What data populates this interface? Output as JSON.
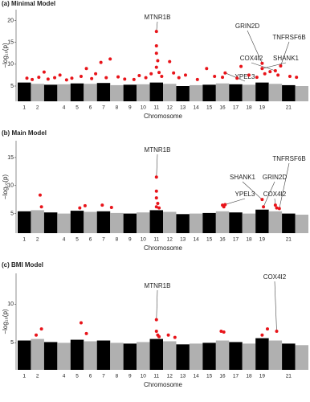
{
  "chart_data": [
    {
      "type": "manhattan",
      "title": "(a) Minimal Model",
      "x_label": "Chromosome",
      "y_label": "−log₁₀(p)",
      "xlim": [
        0.5,
        22.5
      ],
      "ylim": [
        1.5,
        22.5
      ],
      "yticks": [
        5,
        10,
        15,
        20
      ],
      "categories": [
        "1",
        "2",
        null,
        "4",
        "5",
        "6",
        "7",
        "8",
        "9",
        "10",
        "11",
        "12",
        "13",
        "14",
        "15",
        "16",
        "17",
        "18",
        "19",
        null,
        "21",
        null
      ],
      "values": [
        5.8,
        5.5,
        5.3,
        5.4,
        5.6,
        5.5,
        5.7,
        5.2,
        5.3,
        5.4,
        5.8,
        5.5,
        5.0,
        5.2,
        5.3,
        5.6,
        5.4,
        5.3,
        5.8,
        5.5,
        5.2,
        5.0
      ],
      "colors": [
        "#000000",
        "#b0b0b0"
      ],
      "hits": {
        "color": "#e8141a",
        "x": [
          1.2,
          1.6,
          2.1,
          2.5,
          2.8,
          3.3,
          3.7,
          4.2,
          4.6,
          5.3,
          5.7,
          6.1,
          6.4,
          6.8,
          7.2,
          7.5,
          8.1,
          8.6,
          9.3,
          9.7,
          10.2,
          10.6,
          11.0,
          11.0,
          11.0,
          11.1,
          11.0,
          11.2,
          11.4,
          12.0,
          12.3,
          12.7,
          13.2,
          14.1,
          14.8,
          15.4,
          16.0,
          16.2,
          17.1,
          17.4,
          18.0,
          18.6,
          19.0,
          19.0,
          19.2,
          19.6,
          20.0,
          20.2,
          20.4,
          21.1,
          21.6
        ],
        "y": [
          6.8,
          6.5,
          7.0,
          8.2,
          6.6,
          6.9,
          7.5,
          6.4,
          6.8,
          7.2,
          9.0,
          6.7,
          7.8,
          10.4,
          6.9,
          11.2,
          7.1,
          6.6,
          6.5,
          7.4,
          6.9,
          7.8,
          17.5,
          14.2,
          12.5,
          10.8,
          9.3,
          8.1,
          7.2,
          10.6,
          8.0,
          6.9,
          7.5,
          6.5,
          9.0,
          7.2,
          7.0,
          8.0,
          6.8,
          9.5,
          7.5,
          7.0,
          10.2,
          9.0,
          7.8,
          8.3,
          8.5,
          7.5,
          9.6,
          7.2,
          7.0
        ]
      },
      "annotations": [
        {
          "label": "MTNR1B",
          "x": 11.0,
          "y": 17.5
        },
        {
          "label": "GRIN2D",
          "x": 19.0,
          "y": 10.2
        },
        {
          "label": "TNFRSF6B",
          "x": 20.4,
          "y": 9.6
        },
        {
          "label": "COX4I2",
          "x": 20.0,
          "y": 8.5
        },
        {
          "label": "SHANK1",
          "x": 19.0,
          "y": 9.0
        },
        {
          "label": "YPEL3",
          "x": 16.2,
          "y": 8.0
        }
      ]
    },
    {
      "type": "manhattan",
      "title": "(b) Main Model",
      "x_label": "Chromosome",
      "y_label": "−log₁₀(p)",
      "xlim": [
        0.5,
        22.5
      ],
      "ylim": [
        1.5,
        18
      ],
      "yticks": [
        5,
        10,
        15
      ],
      "categories": [
        "1",
        "2",
        null,
        "4",
        "5",
        "6",
        "7",
        "8",
        "9",
        "10",
        "11",
        "12",
        "13",
        "14",
        "15",
        "16",
        "17",
        "18",
        "19",
        null,
        "21",
        null
      ],
      "values": [
        5.4,
        5.6,
        5.2,
        5.0,
        5.5,
        5.3,
        5.4,
        5.1,
        5.0,
        5.2,
        5.6,
        5.3,
        4.9,
        5.0,
        5.1,
        5.4,
        5.2,
        5.0,
        5.7,
        5.4,
        5.0,
        4.8
      ],
      "colors": [
        "#000000",
        "#b0b0b0"
      ],
      "hits": {
        "color": "#e8141a",
        "x": [
          2.2,
          2.3,
          5.2,
          5.6,
          6.9,
          7.6,
          11.0,
          11.0,
          11.0,
          11.1,
          11.0,
          11.2,
          16.0,
          16.1,
          16.2,
          19.0,
          19.1,
          20.0,
          20.1,
          20.3
        ],
        "y": [
          8.3,
          6.2,
          6.0,
          6.4,
          6.5,
          6.1,
          11.5,
          9.0,
          7.8,
          6.8,
          6.2,
          6.0,
          6.5,
          6.2,
          6.6,
          7.5,
          6.2,
          6.5,
          6.0,
          5.9
        ]
      },
      "annotations": [
        {
          "label": "MTNR1B",
          "x": 11.0,
          "y": 11.5
        },
        {
          "label": "TNFRSF6B",
          "x": 20.3,
          "y": 5.9
        },
        {
          "label": "SHANK1",
          "x": 19.0,
          "y": 7.5
        },
        {
          "label": "GRIN2D",
          "x": 19.1,
          "y": 6.2
        },
        {
          "label": "YPEL3",
          "x": 16.2,
          "y": 6.6
        },
        {
          "label": "COX4I2",
          "x": 20.0,
          "y": 6.5
        }
      ]
    },
    {
      "type": "manhattan",
      "title": "(c) BMI Model",
      "x_label": "Chromosome",
      "y_label": "−log₁₀(p)",
      "xlim": [
        0.5,
        22.5
      ],
      "ylim": [
        1.5,
        14
      ],
      "yticks": [
        5,
        10
      ],
      "categories": [
        "1",
        "2",
        null,
        "4",
        "5",
        "6",
        "7",
        "8",
        "9",
        "10",
        "11",
        "12",
        "13",
        "14",
        "15",
        "16",
        "17",
        "18",
        "19",
        null,
        "21",
        null
      ],
      "values": [
        5.3,
        5.5,
        5.1,
        5.0,
        5.4,
        5.2,
        5.3,
        5.0,
        4.9,
        5.1,
        5.5,
        5.2,
        4.8,
        4.9,
        5.0,
        5.3,
        5.1,
        4.9,
        5.6,
        5.3,
        4.9,
        4.7
      ],
      "colors": [
        "#000000",
        "#b0b0b0"
      ],
      "hits": {
        "color": "#e8141a",
        "x": [
          1.9,
          2.3,
          5.3,
          5.7,
          11.0,
          11.0,
          11.1,
          11.2,
          11.9,
          12.4,
          15.9,
          16.1,
          19.0,
          19.4,
          20.1
        ],
        "y": [
          6.0,
          6.8,
          7.6,
          6.2,
          8.0,
          6.5,
          6.0,
          5.8,
          6.0,
          5.7,
          6.5,
          6.4,
          6.0,
          6.8,
          6.5
        ]
      },
      "annotations": [
        {
          "label": "MTNR1B",
          "x": 11.0,
          "y": 8.0
        },
        {
          "label": "COX4I2",
          "x": 20.1,
          "y": 6.5
        }
      ]
    }
  ]
}
